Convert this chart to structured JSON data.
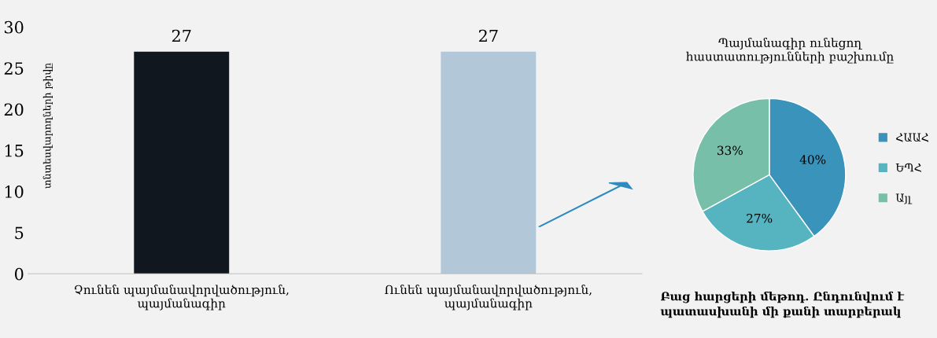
{
  "chart_data": [
    {
      "type": "bar",
      "ylabel": "տնտեսվարողների թիվը",
      "categories": [
        "Չունեն պայմանավորվածություն,\nպայմանագիր",
        "Ունեն պայմանավորվածություն,\nպայմանագիր"
      ],
      "values": [
        27,
        27
      ],
      "colors": [
        "#11171f",
        "#b2c7d8"
      ],
      "ylim": [
        0,
        30
      ],
      "yticks": [
        0,
        5,
        10,
        15,
        20,
        25,
        30
      ],
      "grid": false,
      "data_labels": true
    },
    {
      "type": "pie",
      "title": "Պայմանագիր ունեցող\nհաստատությունների բաշխումը",
      "categories": [
        "ՀԱԱՀ",
        "ԵՊՀ",
        "Այլ"
      ],
      "values": [
        40,
        27,
        33
      ],
      "colors": [
        "#3a93bb",
        "#56b4c0",
        "#77bfa8"
      ],
      "legend": "right",
      "value_labels": [
        "40%",
        "27%",
        "33%"
      ],
      "annotations": [
        "Բաց հարցերի մեթոդ. Ընդունվում է\nպատասխանի մի քանի տարբերակ"
      ]
    }
  ]
}
